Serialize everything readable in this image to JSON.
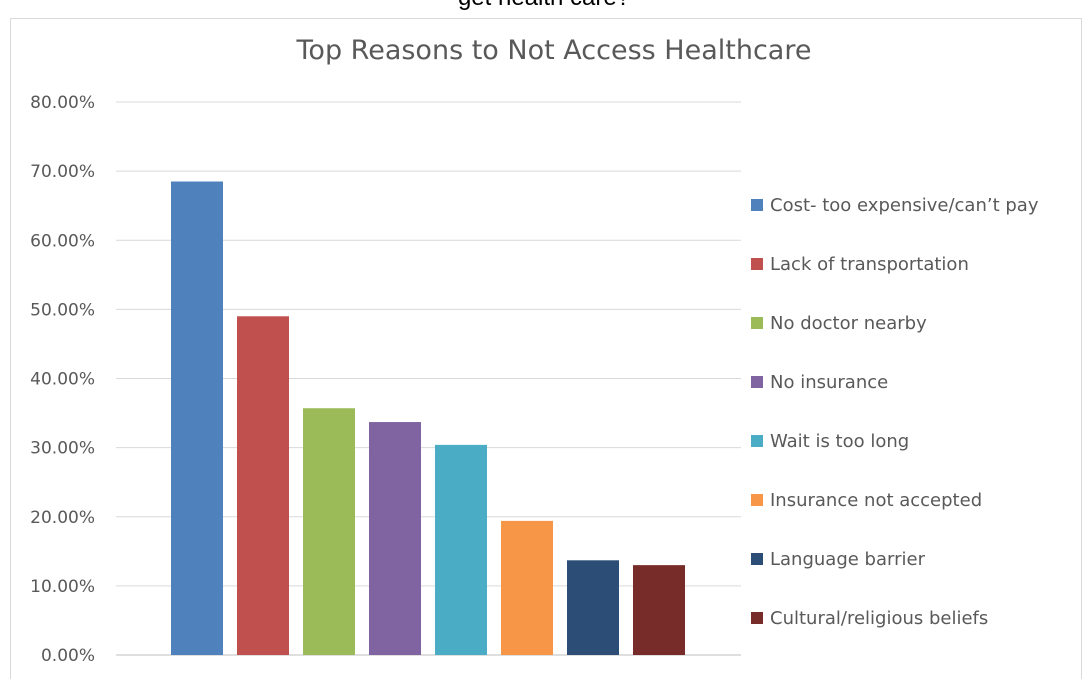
{
  "heading_fragment": "get health care?",
  "chart_data": {
    "type": "bar",
    "title": "Top Reasons to Not Access Healthcare",
    "xlabel": "",
    "ylabel": "",
    "ylim": [
      0,
      0.8
    ],
    "yticks": [
      0,
      0.1,
      0.2,
      0.3,
      0.4,
      0.5,
      0.6,
      0.7,
      0.8
    ],
    "ytick_labels": [
      "0.00%",
      "10.00%",
      "20.00%",
      "30.00%",
      "40.00%",
      "50.00%",
      "60.00%",
      "70.00%",
      "80.00%"
    ],
    "grid": true,
    "legend_position": "right",
    "series": [
      {
        "name": "Cost- too expensive/can’t pay",
        "value": 0.685,
        "color": "#4F81BD"
      },
      {
        "name": "Lack of transportation",
        "value": 0.49,
        "color": "#C0504D"
      },
      {
        "name": "No doctor nearby",
        "value": 0.357,
        "color": "#9BBB59"
      },
      {
        "name": "No insurance",
        "value": 0.337,
        "color": "#8064A2"
      },
      {
        "name": "Wait is too long",
        "value": 0.304,
        "color": "#4BACC6"
      },
      {
        "name": "Insurance not accepted",
        "value": 0.194,
        "color": "#F79646"
      },
      {
        "name": "Language barrier",
        "value": 0.137,
        "color": "#2C4D75"
      },
      {
        "name": "Cultural/religious beliefs",
        "value": 0.13,
        "color": "#772C2A"
      }
    ]
  }
}
